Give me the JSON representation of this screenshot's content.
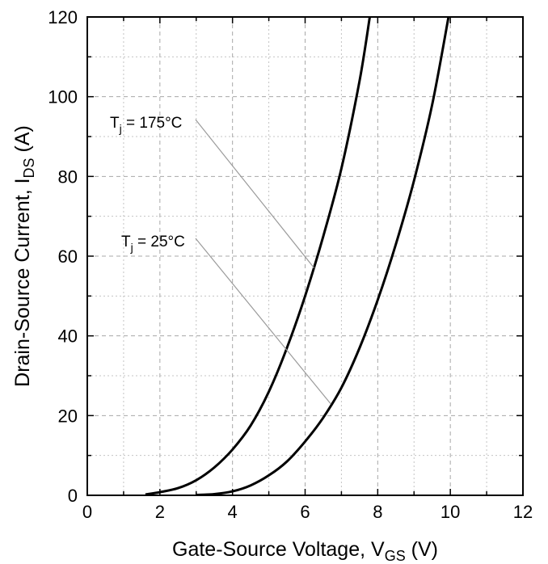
{
  "chart_data": {
    "type": "line",
    "xlabel": {
      "main": "Gate-Source Voltage, V",
      "sub": "GS",
      "tail": " (V)"
    },
    "ylabel": {
      "main": "Drain-Source Current, I",
      "sub": "DS",
      "tail": " (A)"
    },
    "xlim": [
      0,
      12
    ],
    "ylim": [
      0,
      120
    ],
    "x_ticks": [
      0,
      2,
      4,
      6,
      8,
      10,
      12
    ],
    "y_ticks": [
      0,
      20,
      40,
      60,
      80,
      100,
      120
    ],
    "grid": true,
    "series": [
      {
        "name": "Tj = 175°C",
        "label_main": "T",
        "label_sub": "j",
        "label_tail": " = 175°C",
        "x": [
          1.6,
          2.0,
          2.5,
          3.0,
          3.5,
          4.0,
          4.5,
          5.0,
          5.5,
          6.0,
          6.5,
          7.0,
          7.5,
          7.78
        ],
        "y": [
          0.2,
          0.8,
          1.8,
          3.8,
          7.0,
          11.5,
          17.5,
          26.0,
          37.0,
          50.0,
          65.0,
          82.0,
          104.0,
          120.0
        ]
      },
      {
        "name": "Tj = 25°C",
        "label_main": "T",
        "label_sub": "j",
        "label_tail": " = 25°C",
        "x": [
          3.0,
          3.5,
          4.0,
          4.5,
          5.0,
          5.5,
          6.0,
          6.5,
          7.0,
          7.5,
          8.0,
          8.5,
          9.0,
          9.5,
          9.95
        ],
        "y": [
          0.1,
          0.3,
          1.0,
          2.5,
          5.0,
          8.5,
          13.5,
          19.5,
          27.0,
          37.0,
          49.0,
          63.0,
          79.0,
          98.0,
          120.0
        ]
      }
    ]
  }
}
